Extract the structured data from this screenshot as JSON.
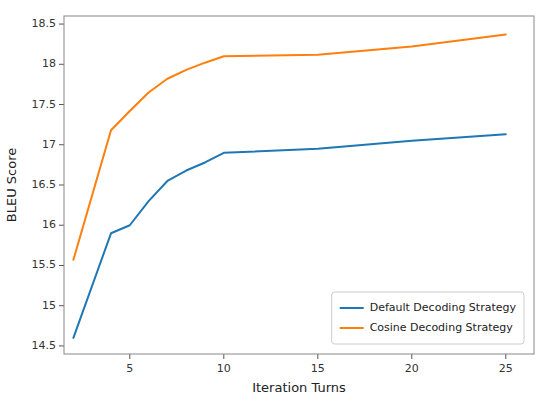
{
  "chart_data": {
    "type": "line",
    "xlabel": "Iteration Turns",
    "ylabel": "BLEU Score",
    "x": [
      2,
      4,
      5,
      6,
      7,
      8,
      9,
      10,
      15,
      20,
      25
    ],
    "series": [
      {
        "name": "Default Decoding Strategy",
        "color": "#1f77b4",
        "values": [
          14.6,
          15.9,
          16.0,
          16.3,
          16.55,
          16.68,
          16.78,
          16.9,
          16.95,
          17.05,
          17.13
        ]
      },
      {
        "name": "Cosine Decoding Strategy",
        "color": "#ff7f0e",
        "values": [
          15.57,
          17.18,
          17.42,
          17.65,
          17.82,
          17.93,
          18.02,
          18.1,
          18.12,
          18.22,
          18.37
        ]
      }
    ],
    "xlim": [
      1.5,
      26.5
    ],
    "xticks": [
      5,
      10,
      15,
      20,
      25
    ],
    "ylim": [
      14.4,
      18.6
    ],
    "yticks": [
      14.5,
      15,
      15.5,
      16,
      16.5,
      17,
      17.5,
      18,
      18.5
    ],
    "legend": "lower right"
  }
}
